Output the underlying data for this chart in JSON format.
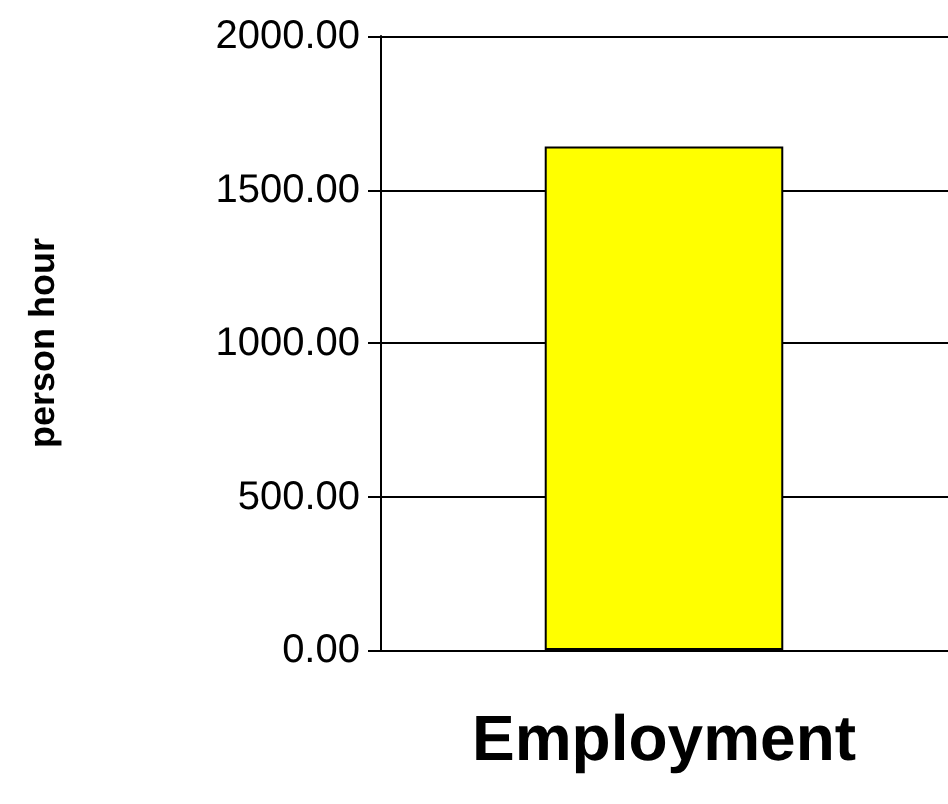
{
  "chart_data": {
    "type": "bar",
    "categories": [
      "Employment"
    ],
    "series": [
      {
        "color": "#ffff00",
        "values": [
          1640
        ]
      }
    ],
    "ylabel": "person hour",
    "ylim": [
      0,
      2000
    ],
    "yticks": [
      {
        "value": 0,
        "label": "0.00"
      },
      {
        "value": 500,
        "label": "500.00"
      },
      {
        "value": 1000,
        "label": "1000.00"
      },
      {
        "value": 1500,
        "label": "1500.00"
      },
      {
        "value": 2000,
        "label": "2000.00"
      }
    ],
    "grid": "y"
  }
}
